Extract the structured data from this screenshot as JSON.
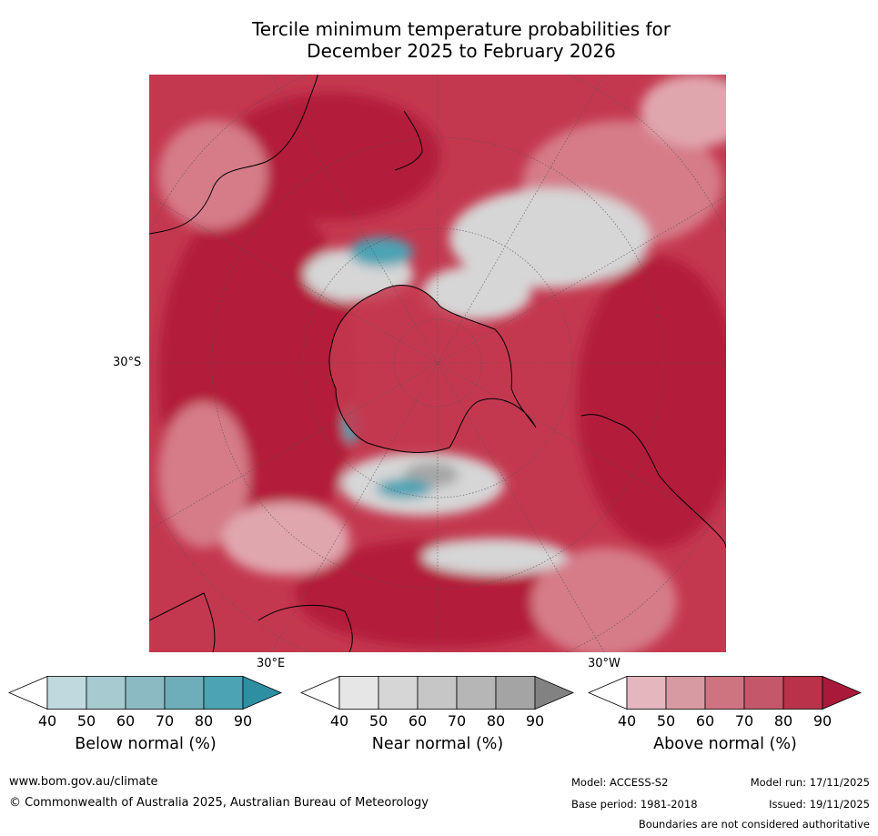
{
  "title_line1": "Tercile minimum temperature probabilities for",
  "title_line2": "December 2025 to February 2026",
  "map": {
    "lat_label": "30°S",
    "lon_label_east": "30°E",
    "lon_label_west": "30°W",
    "colors": {
      "above_90": "#b31b3b",
      "above_80": "#c4384f",
      "above_70": "#cc5a6a",
      "above_60": "#d57c88",
      "above_50": "#e0a6ae",
      "near": "#d6d6d6",
      "near_dark": "#a6a6a6",
      "below": "#4ba3b3",
      "land_outline": "#000000",
      "graticule": "#555555"
    }
  },
  "colorbars": [
    {
      "label": "Below normal (%)",
      "ticks": [
        "40",
        "50",
        "60",
        "70",
        "80",
        "90"
      ],
      "colors": [
        "#c0d9df",
        "#a7c9d0",
        "#8bbac2",
        "#6eaebb",
        "#4ba3b3",
        "#2e8fa3"
      ]
    },
    {
      "label": "Near normal (%)",
      "ticks": [
        "40",
        "50",
        "60",
        "70",
        "80",
        "90"
      ],
      "colors": [
        "#e6e6e6",
        "#d6d6d6",
        "#c6c6c6",
        "#b6b6b6",
        "#a4a4a4",
        "#828282"
      ]
    },
    {
      "label": "Above normal (%)",
      "ticks": [
        "40",
        "50",
        "60",
        "70",
        "80",
        "90"
      ],
      "colors": [
        "#e3b7bd",
        "#d79aa2",
        "#cd7480",
        "#c4576a",
        "#b93249",
        "#a8193a"
      ]
    }
  ],
  "footer": {
    "url": "www.bom.gov.au/climate",
    "copyright": "© Commonwealth of Australia 2025, Australian Bureau of Meteorology",
    "model": "Model: ACCESS-S2",
    "base_period": "Base period: 1981-2018",
    "model_run": "Model run: 17/11/2025",
    "issued": "Issued: 19/11/2025",
    "disclaimer": "Boundaries are not considered authoritative"
  }
}
